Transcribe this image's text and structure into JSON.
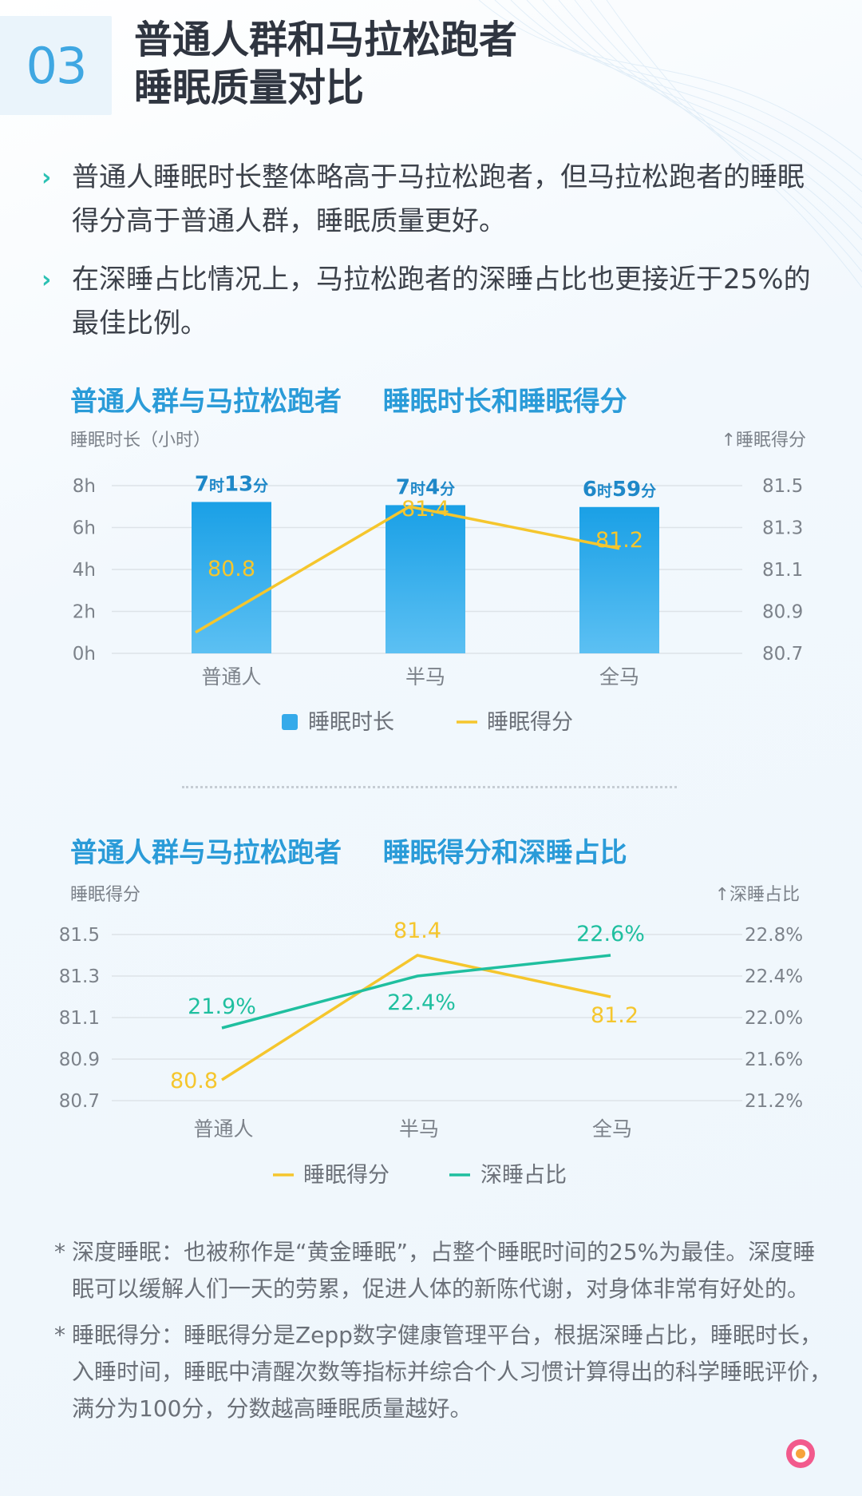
{
  "header": {
    "number": "03",
    "title_line1": "普通人群和马拉松跑者",
    "title_line2": "睡眠质量对比"
  },
  "bullets": [
    "普通人睡眠时长整体略高于马拉松跑者，但马拉松跑者的睡眠得分高于普通人群，睡眠质量更好。",
    "在深睡占比情况上，马拉松跑者的深睡占比也更接近于25%的最佳比例。"
  ],
  "chart_data": [
    {
      "type": "bar",
      "title_left": "普通人群与马拉松跑者",
      "title_right": "睡眠时长和睡眠得分",
      "categories": [
        "普通人",
        "半马",
        "全马"
      ],
      "ylabel": "睡眠时长（小时）",
      "y2label": "↑睡眠得分",
      "yticks": [
        "8h",
        "6h",
        "4h",
        "2h",
        "0h"
      ],
      "y2ticks": [
        "81.5",
        "81.3",
        "81.1",
        "80.9",
        "80.7"
      ],
      "ylim": [
        0,
        8
      ],
      "y2lim": [
        80.7,
        81.5
      ],
      "series": [
        {
          "name": "睡眠时长",
          "type": "bar",
          "color": "#35aaea",
          "values": [
            7.22,
            7.07,
            6.98
          ],
          "labels": [
            {
              "h": "7",
              "h_unit": "时",
              "m": "13",
              "m_unit": "分"
            },
            {
              "h": "7",
              "h_unit": "时",
              "m": "4",
              "m_unit": "分"
            },
            {
              "h": "6",
              "h_unit": "时",
              "m": "59",
              "m_unit": "分"
            }
          ]
        },
        {
          "name": "睡眠得分",
          "type": "line",
          "color": "#f5c62d",
          "values": [
            80.8,
            81.4,
            81.2
          ],
          "labels": [
            "80.8",
            "81.4",
            "81.2"
          ]
        }
      ]
    },
    {
      "type": "line",
      "title_left": "普通人群与马拉松跑者",
      "title_right": "睡眠得分和深睡占比",
      "categories": [
        "普通人",
        "半马",
        "全马"
      ],
      "ylabel": "睡眠得分",
      "y2label": "↑深睡占比",
      "yticks": [
        "81.5",
        "81.3",
        "81.1",
        "80.9",
        "80.7"
      ],
      "y2ticks": [
        "22.8%",
        "22.4%",
        "22.0%",
        "21.6%",
        "21.2%"
      ],
      "ylim": [
        80.7,
        81.5
      ],
      "y2lim": [
        21.2,
        22.8
      ],
      "series": [
        {
          "name": "睡眠得分",
          "color": "#f5c62d",
          "values": [
            80.8,
            81.4,
            81.2
          ],
          "labels": [
            "80.8",
            "81.4",
            "81.2"
          ]
        },
        {
          "name": "深睡占比",
          "color": "#1fbf9f",
          "values": [
            21.9,
            22.4,
            22.6
          ],
          "labels": [
            "21.9%",
            "22.4%",
            "22.6%"
          ]
        }
      ]
    }
  ],
  "notes": [
    {
      "star": "*",
      "text": "深度睡眠：也被称作是“黄金睡眠”，占整个睡眠时间的25%为最佳。深度睡眠可以缓解人们一天的劳累，促进人体的新陈代谢，对身体非常有好处的。"
    },
    {
      "star": "*",
      "text": "睡眠得分：睡眠得分是Zepp数字健康管理平台，根据深睡占比，睡眠时长，入睡时间，睡眠中清醒次数等指标并综合个人习惯计算得出的科学睡眠评价，满分为100分，分数越高睡眠质量越好。"
    }
  ],
  "colors": {
    "accent_blue": "#2a9bd8",
    "bar_blue": "#35aaea",
    "line_yellow": "#f5c62d",
    "line_green": "#1fbf9f",
    "bullet_teal": "#2bc1b3"
  }
}
